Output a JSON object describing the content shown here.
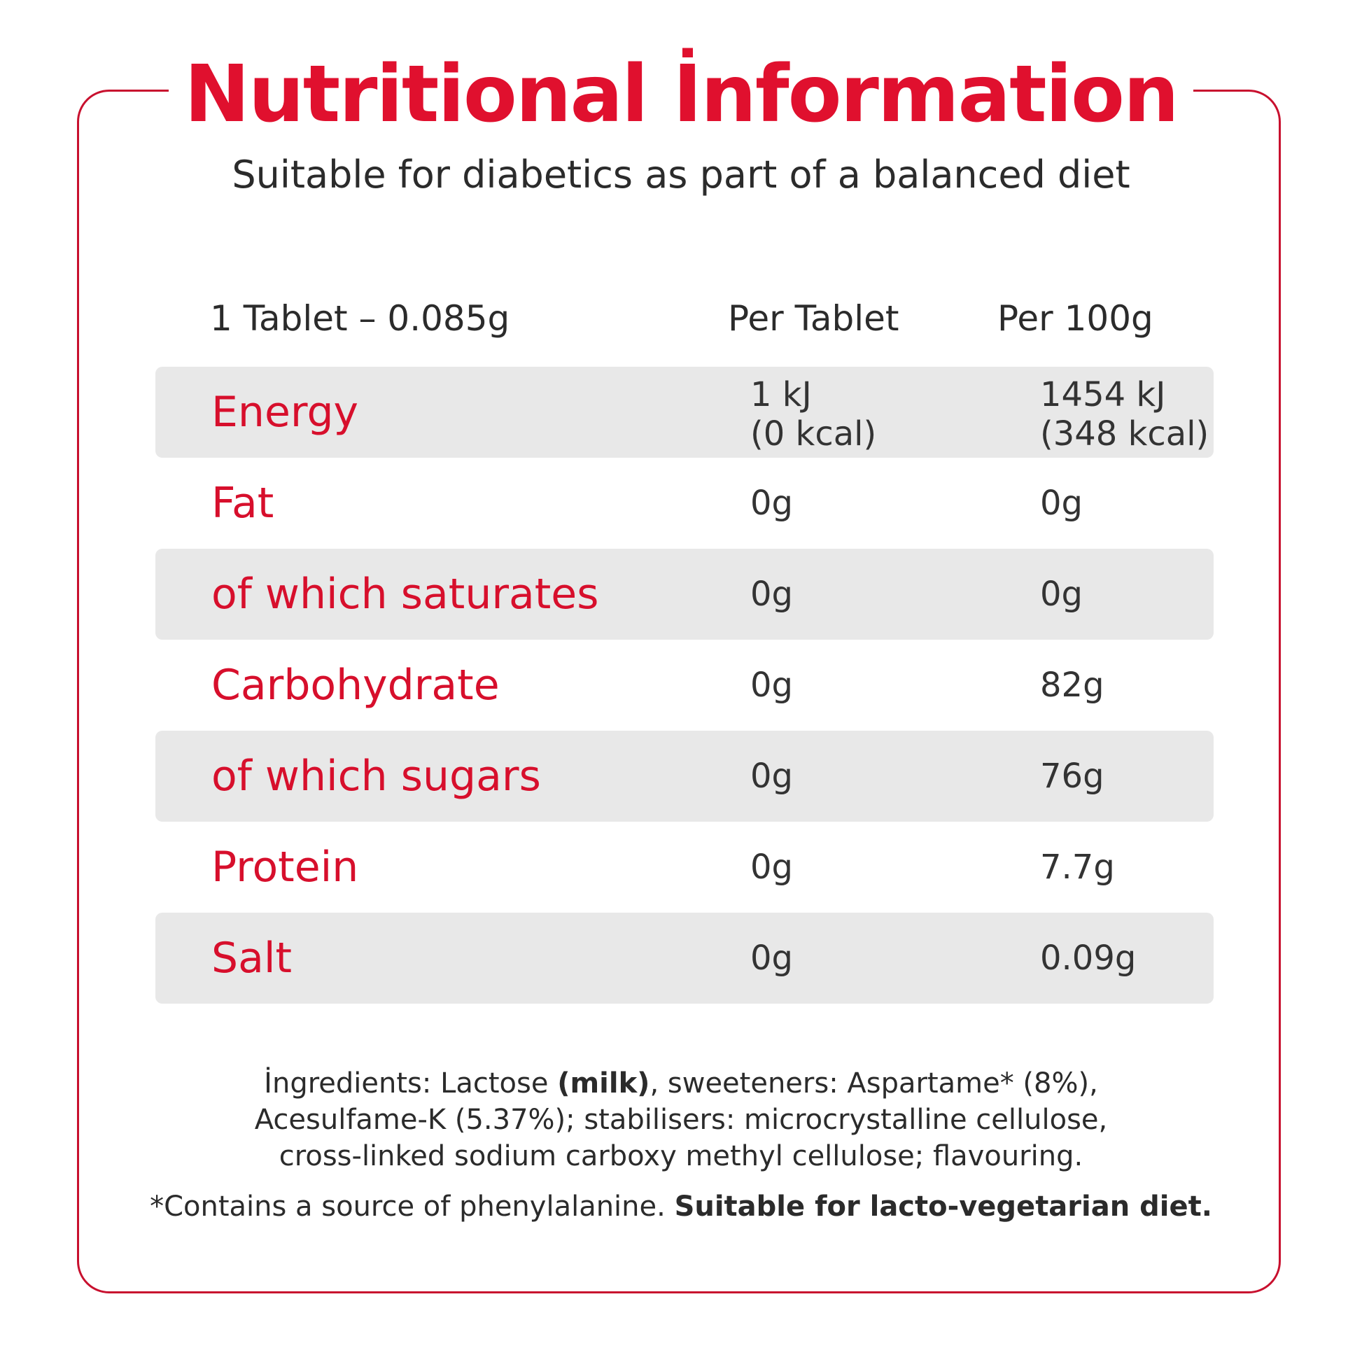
{
  "header": {
    "title": "Nutritional İnformation",
    "subtitle": "Suitable for diabetics as part of a balanced diet"
  },
  "table": {
    "columns": [
      "1 Tablet – 0.085g",
      "Per Tablet",
      "Per 100g"
    ],
    "rows": [
      {
        "label": "Energy",
        "per_tablet_line1": "1 kJ",
        "per_tablet_line2": "(0 kcal)",
        "per_100g_line1": "1454 kJ",
        "per_100g_line2": "(348 kcal)"
      },
      {
        "label": "Fat",
        "per_tablet": "0g",
        "per_100g": "0g"
      },
      {
        "label": "of which saturates",
        "per_tablet": "0g",
        "per_100g": "0g"
      },
      {
        "label": "Carbohydrate",
        "per_tablet": "0g",
        "per_100g": "82g"
      },
      {
        "label": "of which sugars",
        "per_tablet": "0g",
        "per_100g": "76g"
      },
      {
        "label": "Protein",
        "per_tablet": "0g",
        "per_100g": "7.7g"
      },
      {
        "label": "Salt",
        "per_tablet": "0g",
        "per_100g": "0.09g"
      }
    ]
  },
  "ingredients": {
    "prefix": "İngredients: Lactose ",
    "allergen": "(milk)",
    "rest": ", sweeteners: Aspartame* (8%), Acesulfame-K (5.37%); stabilisers: microcrystalline cellulose, cross-linked sodium carboxy methyl cellulose; flavouring."
  },
  "note": {
    "text": "*Contains a source of phenylalanine. ",
    "bold": "Suitable for lacto-vegetarian diet."
  },
  "colors": {
    "accent": "#d70f2c",
    "row_shade": "#e8e8e8",
    "text": "#2b2b2b"
  }
}
